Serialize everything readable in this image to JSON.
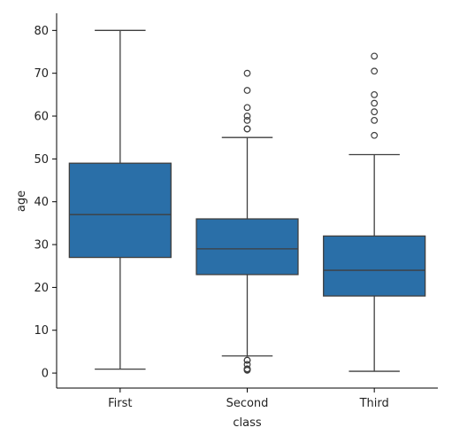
{
  "chart_data": {
    "type": "box",
    "xlabel": "class",
    "ylabel": "age",
    "ylim": [
      -3.5,
      84
    ],
    "y_ticks": [
      0,
      10,
      20,
      30,
      40,
      50,
      60,
      70,
      80
    ],
    "box_color": "#2a6fa8",
    "line_color": "#3f3f3f",
    "grid": false,
    "categories": [
      "First",
      "Second",
      "Third"
    ],
    "boxes": [
      {
        "category": "First",
        "whisker_low": 0.92,
        "q1": 27,
        "median": 37,
        "q3": 49,
        "whisker_high": 80,
        "outliers": []
      },
      {
        "category": "Second",
        "whisker_low": 4,
        "q1": 23,
        "median": 29,
        "q3": 36,
        "whisker_high": 55,
        "outliers": [
          0.67,
          0.83,
          0.83,
          1,
          2,
          3,
          3,
          57,
          57,
          59,
          60,
          62,
          66,
          70
        ]
      },
      {
        "category": "Third",
        "whisker_low": 0.42,
        "q1": 18,
        "median": 24,
        "q3": 32,
        "whisker_high": 51,
        "outliers": [
          55.5,
          59,
          61,
          63,
          65,
          70.5,
          74
        ]
      }
    ]
  }
}
